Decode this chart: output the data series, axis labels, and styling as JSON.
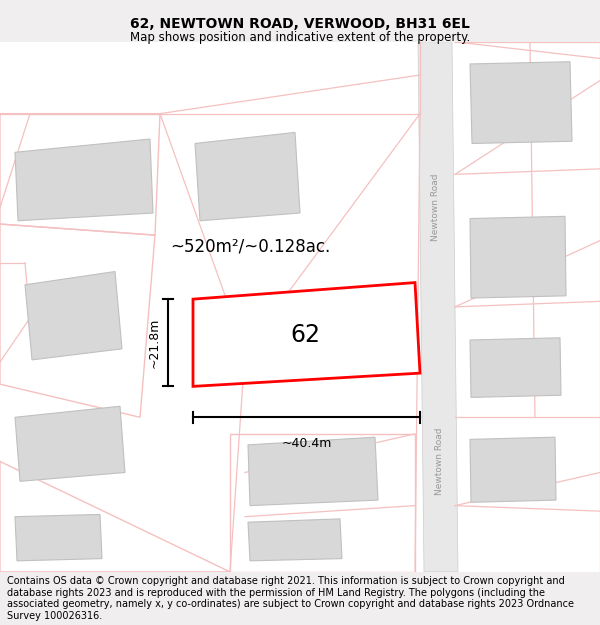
{
  "title": "62, NEWTOWN ROAD, VERWOOD, BH31 6EL",
  "subtitle": "Map shows position and indicative extent of the property.",
  "footer": "Contains OS data © Crown copyright and database right 2021. This information is subject to Crown copyright and database rights 2023 and is reproduced with the permission of HM Land Registry. The polygons (including the associated geometry, namely x, y co-ordinates) are subject to Crown copyright and database rights 2023 Ordnance Survey 100026316.",
  "area_label": "~520m²/~0.128ac.",
  "plot_number": "62",
  "width_label": "~40.4m",
  "height_label": "~21.8m",
  "road_label_top": "Newtown Road",
  "road_label_bottom": "Newtown Road",
  "title_fontsize": 10,
  "subtitle_fontsize": 8.5,
  "footer_fontsize": 7.0
}
